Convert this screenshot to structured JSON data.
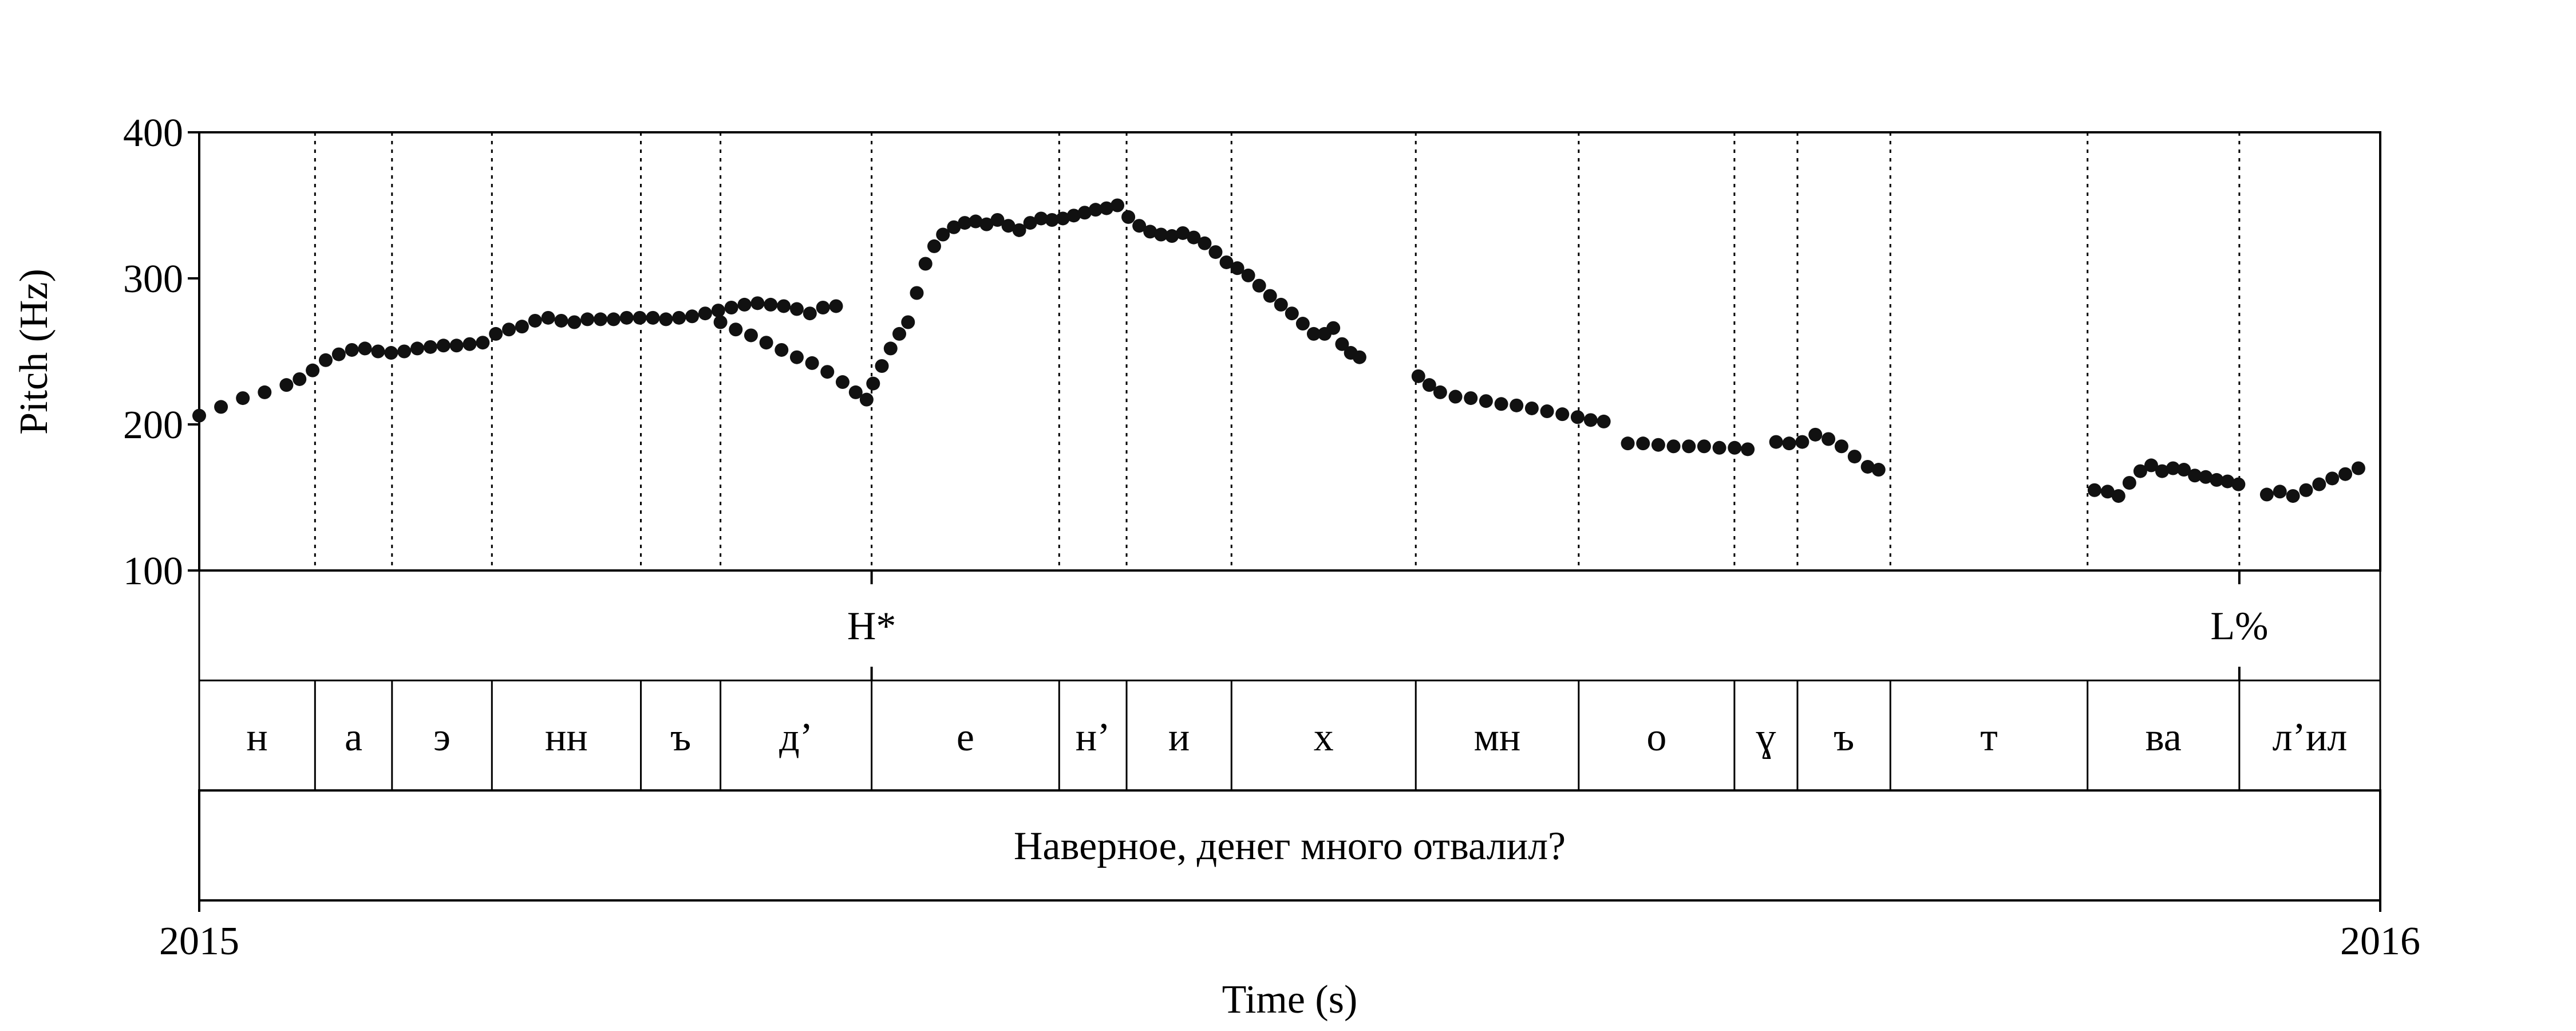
{
  "chart_data": {
    "type": "scatter",
    "title": "",
    "xlabel": "Time (s)",
    "ylabel": "Pitch (Hz)",
    "xlim": [
      2015,
      2016
    ],
    "ylim": [
      100,
      400
    ],
    "x_tick_labels": [
      "2015",
      "2016"
    ],
    "y_ticks": [
      100,
      200,
      300,
      400
    ],
    "y_tick_labels": [
      "100",
      "200",
      "300",
      "400"
    ],
    "boundaries": [
      0.0531,
      0.0884,
      0.1342,
      0.2025,
      0.239,
      0.3083,
      0.3943,
      0.4252,
      0.4733,
      0.5578,
      0.6325,
      0.7039,
      0.7328,
      0.7754,
      0.8658,
      0.9354
    ],
    "tone_tier": [
      {
        "label": "H*",
        "t": 0.3083
      },
      {
        "label": "L%",
        "t": 0.9354
      }
    ],
    "segment_tier": [
      {
        "label": "н",
        "start": 0.0,
        "end": 0.0531
      },
      {
        "label": "а",
        "start": 0.0531,
        "end": 0.0884
      },
      {
        "label": "э",
        "start": 0.0884,
        "end": 0.1342
      },
      {
        "label": "нн",
        "start": 0.1342,
        "end": 0.2025
      },
      {
        "label": "ъ",
        "start": 0.2025,
        "end": 0.239
      },
      {
        "label": "д’",
        "start": 0.239,
        "end": 0.3083
      },
      {
        "label": "е",
        "start": 0.3083,
        "end": 0.3943
      },
      {
        "label": "н’",
        "start": 0.3943,
        "end": 0.4252
      },
      {
        "label": "и",
        "start": 0.4252,
        "end": 0.4733
      },
      {
        "label": "х",
        "start": 0.4733,
        "end": 0.5578
      },
      {
        "label": "мн",
        "start": 0.5578,
        "end": 0.6325
      },
      {
        "label": "о",
        "start": 0.6325,
        "end": 0.7039
      },
      {
        "label": "ɣ",
        "start": 0.7039,
        "end": 0.7328
      },
      {
        "label": "ъ",
        "start": 0.7328,
        "end": 0.7754
      },
      {
        "label": "т",
        "start": 0.7754,
        "end": 0.8658
      },
      {
        "label": "ва",
        "start": 0.8658,
        "end": 0.9354
      },
      {
        "label": "л’ил",
        "start": 0.9354,
        "end": 1.0
      }
    ],
    "utterance_tier": {
      "label": "Наверное, денег много отвалил?"
    },
    "series": [
      {
        "points": [
          [
            0.0,
            206
          ],
          [
            0.01,
            212
          ],
          [
            0.02,
            218
          ],
          [
            0.03,
            222
          ],
          [
            0.04,
            227
          ],
          [
            0.046,
            231
          ],
          [
            0.052,
            237
          ],
          [
            0.058,
            244
          ],
          [
            0.064,
            248
          ],
          [
            0.07,
            251
          ],
          [
            0.076,
            252
          ],
          [
            0.082,
            250
          ],
          [
            0.088,
            249
          ],
          [
            0.094,
            250
          ],
          [
            0.1,
            252
          ],
          [
            0.106,
            253
          ],
          [
            0.112,
            254
          ],
          [
            0.118,
            254
          ],
          [
            0.124,
            255
          ],
          [
            0.13,
            256
          ],
          [
            0.136,
            262
          ],
          [
            0.142,
            265
          ],
          [
            0.148,
            267
          ],
          [
            0.154,
            271
          ],
          [
            0.16,
            273
          ],
          [
            0.166,
            271
          ],
          [
            0.172,
            270
          ],
          [
            0.178,
            272
          ],
          [
            0.184,
            272
          ],
          [
            0.19,
            272
          ],
          [
            0.196,
            273
          ],
          [
            0.202,
            273
          ],
          [
            0.208,
            273
          ],
          [
            0.214,
            272
          ],
          [
            0.22,
            273
          ],
          [
            0.226,
            274
          ],
          [
            0.232,
            276
          ],
          [
            0.238,
            278
          ],
          [
            0.244,
            280
          ],
          [
            0.25,
            282
          ],
          [
            0.256,
            283
          ],
          [
            0.262,
            282
          ],
          [
            0.268,
            281
          ],
          [
            0.274,
            279
          ],
          [
            0.28,
            276
          ],
          [
            0.286,
            280
          ],
          [
            0.292,
            281
          ]
        ]
      },
      {
        "points": [
          [
            0.239,
            270
          ],
          [
            0.246,
            265
          ],
          [
            0.253,
            261
          ],
          [
            0.26,
            256
          ],
          [
            0.267,
            251
          ],
          [
            0.274,
            246
          ],
          [
            0.281,
            242
          ],
          [
            0.288,
            236
          ],
          [
            0.295,
            229
          ],
          [
            0.301,
            222
          ],
          [
            0.306,
            217
          ]
        ]
      },
      {
        "points": [
          [
            0.309,
            228
          ],
          [
            0.313,
            240
          ],
          [
            0.317,
            252
          ],
          [
            0.321,
            262
          ],
          [
            0.325,
            270
          ],
          [
            0.329,
            290
          ],
          [
            0.333,
            310
          ],
          [
            0.337,
            322
          ],
          [
            0.341,
            330
          ],
          [
            0.346,
            335
          ],
          [
            0.351,
            338
          ],
          [
            0.356,
            339
          ],
          [
            0.361,
            337
          ],
          [
            0.366,
            340
          ],
          [
            0.371,
            336
          ],
          [
            0.376,
            333
          ],
          [
            0.381,
            338
          ],
          [
            0.386,
            341
          ],
          [
            0.391,
            340
          ],
          [
            0.396,
            341
          ],
          [
            0.401,
            343
          ],
          [
            0.406,
            345
          ],
          [
            0.411,
            347
          ],
          [
            0.416,
            348
          ],
          [
            0.421,
            350
          ],
          [
            0.426,
            342
          ],
          [
            0.431,
            336
          ],
          [
            0.436,
            332
          ],
          [
            0.441,
            330
          ],
          [
            0.446,
            329
          ],
          [
            0.451,
            331
          ],
          [
            0.456,
            328
          ],
          [
            0.461,
            324
          ],
          [
            0.466,
            318
          ],
          [
            0.471,
            311
          ],
          [
            0.476,
            307
          ],
          [
            0.481,
            302
          ],
          [
            0.486,
            295
          ],
          [
            0.491,
            288
          ],
          [
            0.496,
            282
          ],
          [
            0.501,
            276
          ],
          [
            0.506,
            269
          ],
          [
            0.511,
            262
          ],
          [
            0.516,
            262
          ],
          [
            0.52,
            266
          ],
          [
            0.524,
            255
          ],
          [
            0.528,
            249
          ],
          [
            0.532,
            246
          ]
        ]
      },
      {
        "points": [
          [
            0.559,
            233
          ],
          [
            0.564,
            227
          ],
          [
            0.569,
            222
          ],
          [
            0.576,
            219
          ],
          [
            0.583,
            218
          ],
          [
            0.59,
            216
          ],
          [
            0.597,
            214
          ],
          [
            0.604,
            213
          ],
          [
            0.611,
            211
          ],
          [
            0.618,
            209
          ],
          [
            0.625,
            207
          ],
          [
            0.632,
            205
          ],
          [
            0.638,
            203
          ],
          [
            0.644,
            202
          ]
        ]
      },
      {
        "points": [
          [
            0.655,
            187
          ],
          [
            0.662,
            187
          ],
          [
            0.669,
            186
          ],
          [
            0.676,
            185
          ],
          [
            0.683,
            185
          ],
          [
            0.69,
            185
          ],
          [
            0.697,
            184
          ],
          [
            0.704,
            184
          ],
          [
            0.71,
            183
          ]
        ]
      },
      {
        "points": [
          [
            0.723,
            188
          ],
          [
            0.729,
            187
          ],
          [
            0.735,
            188
          ],
          [
            0.741,
            193
          ],
          [
            0.747,
            190
          ],
          [
            0.753,
            185
          ],
          [
            0.759,
            178
          ],
          [
            0.765,
            171
          ],
          [
            0.77,
            169
          ]
        ]
      },
      {
        "points": [
          [
            0.869,
            155
          ],
          [
            0.875,
            154
          ],
          [
            0.88,
            151
          ],
          [
            0.885,
            160
          ],
          [
            0.89,
            168
          ],
          [
            0.895,
            172
          ],
          [
            0.9,
            168
          ],
          [
            0.905,
            170
          ],
          [
            0.91,
            169
          ],
          [
            0.915,
            165
          ],
          [
            0.92,
            164
          ],
          [
            0.925,
            162
          ],
          [
            0.93,
            161
          ],
          [
            0.935,
            159
          ]
        ]
      },
      {
        "points": [
          [
            0.948,
            152
          ],
          [
            0.954,
            154
          ],
          [
            0.96,
            151
          ],
          [
            0.966,
            155
          ],
          [
            0.972,
            159
          ],
          [
            0.978,
            163
          ],
          [
            0.984,
            166
          ],
          [
            0.99,
            170
          ]
        ]
      }
    ]
  }
}
